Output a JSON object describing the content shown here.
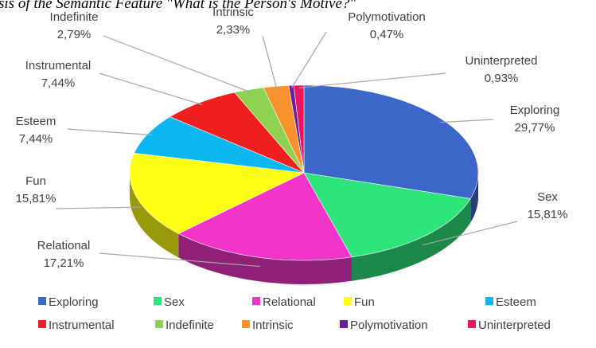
{
  "chart_data": {
    "type": "pie3d",
    "title": "sis of the Semantic Feature \"What is the Person's Motive?\"",
    "categories": [
      "Exploring",
      "Sex",
      "Relational",
      "Fun",
      "Esteem",
      "Instrumental",
      "Indefinite",
      "Intrinsic",
      "Polymotivation",
      "Uninterpreted"
    ],
    "values": [
      29.77,
      15.81,
      17.21,
      15.81,
      7.44,
      7.44,
      2.79,
      2.33,
      0.47,
      0.93
    ],
    "value_labels": [
      "29,77%",
      "15,81%",
      "17,21%",
      "15,81%",
      "7,44%",
      "7,44%",
      "2,79%",
      "2,33%",
      "0,47%",
      "0,93%"
    ],
    "colors": [
      "#3d66c9",
      "#2ee57c",
      "#f235c9",
      "#ffff14",
      "#0ab8ef",
      "#ef1f1f",
      "#8fd150",
      "#f7922c",
      "#6a1fa0",
      "#e8145c"
    ],
    "legend": "bottom"
  }
}
